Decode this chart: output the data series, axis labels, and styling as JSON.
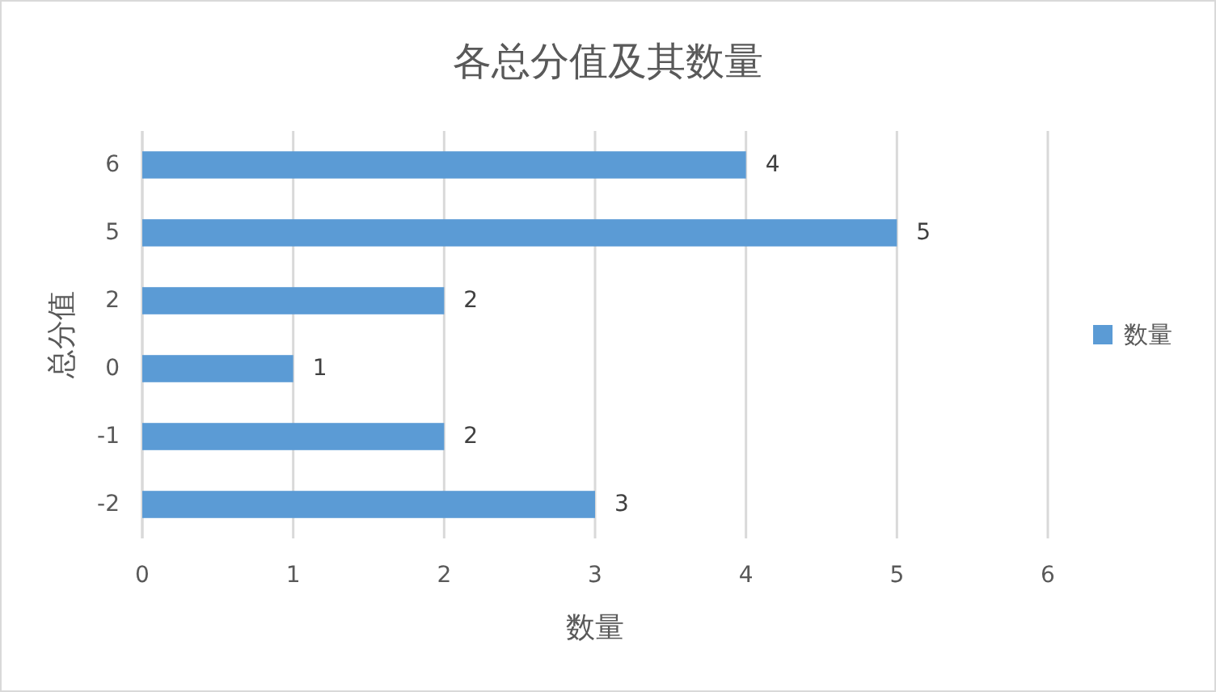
{
  "chart_data": {
    "type": "bar",
    "title": "各总分值及其数量",
    "orientation": "horizontal",
    "categories": [
      "6",
      "5",
      "2",
      "0",
      "-1",
      "-2"
    ],
    "series": [
      {
        "name": "数量",
        "color": "#5b9bd5",
        "values": [
          4,
          5,
          2,
          1,
          2,
          3
        ]
      }
    ],
    "xlabel": "数量",
    "ylabel": "总分值",
    "xlim": [
      0,
      6
    ],
    "xticks": [
      0,
      1,
      2,
      3,
      4,
      5,
      6
    ],
    "grid": "x",
    "legend": "right",
    "data_labels": true
  }
}
